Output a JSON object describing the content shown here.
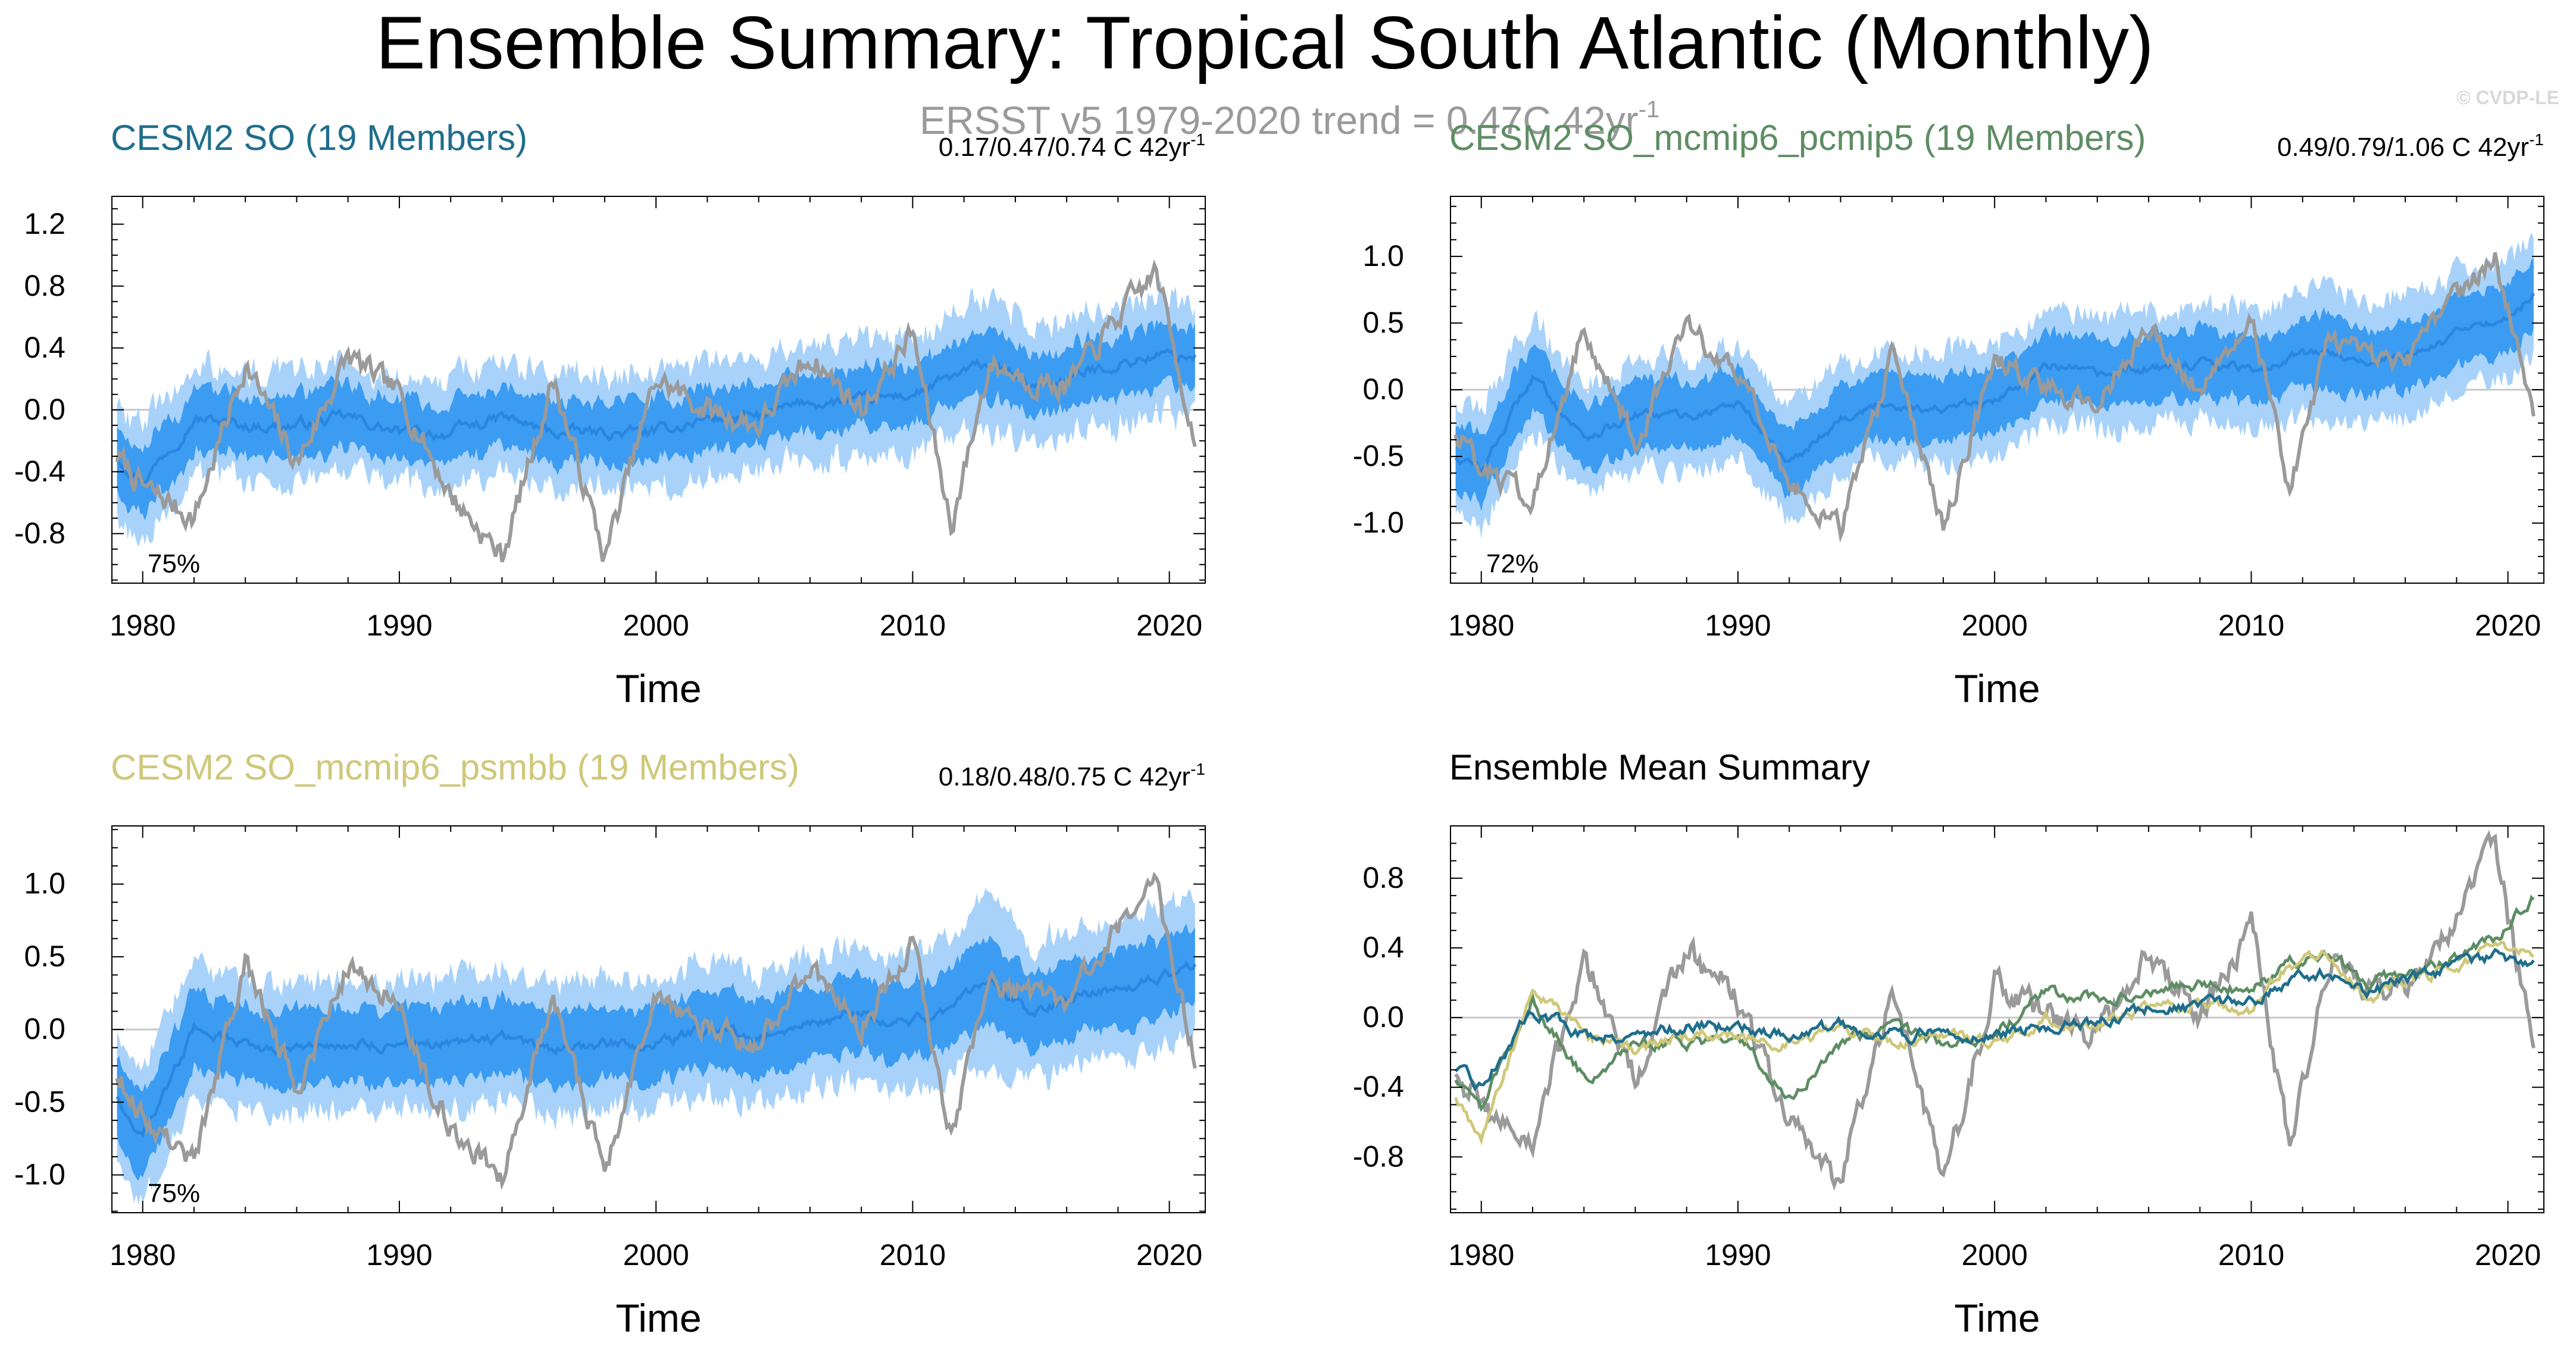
{
  "figure": {
    "title": "Ensemble Summary: Tropical South Atlantic (Monthly)",
    "obs_trend": {
      "text": "ERSST v5 1979-2020 trend = 0.47C 42yr",
      "sup": "-1"
    },
    "watermark": "© CVDP-LE"
  },
  "colors": {
    "obs": "#9a9a9a",
    "band_outer": "#a8d2fa",
    "band_inner": "#3b9cf2",
    "mean_line": "#2a86e0",
    "zero_line": "#c8c8c8",
    "cesm2_so": "#1f6e8c",
    "pcmip5": "#5e8d63",
    "psmbb": "#cfc87a",
    "axis": "#000000"
  },
  "chart_data": [
    {
      "type": "area",
      "id": "cesm2-so",
      "title": "CESM2 SO (19 Members)",
      "title_color": "#1f6e8c",
      "trend": {
        "text": "0.17/0.47/0.74 C 42yr",
        "sup": "-1"
      },
      "percent_label": "75%",
      "xlabel": "Time",
      "ylabel": "",
      "xlim": [
        1978.8,
        2021.4
      ],
      "ylim": [
        -1.12,
        1.38
      ],
      "xticks": [
        1980,
        1990,
        2000,
        2010,
        2020
      ],
      "yticks": [
        -0.8,
        -0.4,
        0.0,
        0.4,
        0.8,
        1.2
      ],
      "yticklabels": [
        "-0.8",
        "-0.4",
        "0.0",
        "0.4",
        "0.8",
        "1.2"
      ],
      "x": [
        1979.0,
        1980.0,
        1982.0,
        1984.0,
        1986.0,
        1988.0,
        1990.0,
        1992.0,
        1994.0,
        1996.0,
        1998.0,
        2000.0,
        2002.0,
        2004.0,
        2006.0,
        2008.0,
        2010.0,
        2011.5,
        2013.0,
        2014.5,
        2016.0,
        2018.0,
        2019.5,
        2021.0
      ],
      "ensemble_mean": [
        -0.3,
        -0.45,
        -0.05,
        -0.1,
        -0.1,
        -0.05,
        -0.15,
        -0.15,
        -0.05,
        -0.15,
        -0.15,
        -0.15,
        -0.05,
        -0.05,
        0.05,
        0.05,
        0.1,
        0.2,
        0.3,
        0.15,
        0.2,
        0.3,
        0.35,
        0.35
      ],
      "inner_band_halfwidth": [
        0.22,
        0.22,
        0.2,
        0.2,
        0.2,
        0.2,
        0.2,
        0.2,
        0.2,
        0.2,
        0.2,
        0.2,
        0.2,
        0.2,
        0.2,
        0.2,
        0.2,
        0.2,
        0.22,
        0.2,
        0.2,
        0.2,
        0.2,
        0.2
      ],
      "outer_band_halfwidth": [
        0.38,
        0.38,
        0.36,
        0.36,
        0.36,
        0.36,
        0.36,
        0.36,
        0.36,
        0.36,
        0.36,
        0.36,
        0.36,
        0.36,
        0.36,
        0.36,
        0.38,
        0.38,
        0.45,
        0.38,
        0.38,
        0.38,
        0.38,
        0.38
      ],
      "observed": [
        -0.3,
        -0.5,
        -0.7,
        0.3,
        -0.35,
        0.35,
        0.1,
        -0.55,
        -0.95,
        0.2,
        -0.95,
        0.2,
        0.0,
        -0.1,
        0.35,
        0.0,
        0.5,
        -0.75,
        0.3,
        0.2,
        0.15,
        0.6,
        0.9,
        -0.2
      ]
    },
    {
      "type": "area",
      "id": "cesm2-so-pcmip5",
      "title": "CESM2 SO_mcmip6_pcmip5 (19 Members)",
      "title_color": "#5e8d63",
      "trend": {
        "text": "0.49/0.79/1.06 C 42yr",
        "sup": "-1"
      },
      "percent_label": "72%",
      "xlabel": "Time",
      "ylabel": "",
      "xlim": [
        1978.8,
        2021.4
      ],
      "ylim": [
        -1.45,
        1.45
      ],
      "xticks": [
        1980,
        1990,
        2000,
        2010,
        2020
      ],
      "yticks": [
        -1.0,
        -0.5,
        0.0,
        0.5,
        1.0
      ],
      "yticklabels": [
        "-1.0",
        "-0.5",
        "0.0",
        "0.5",
        "1.0"
      ],
      "x": [
        1979.0,
        1980.0,
        1982.0,
        1984.0,
        1986.0,
        1988.0,
        1990.0,
        1992.0,
        1994.0,
        1996.0,
        1998.0,
        2000.0,
        2002.0,
        2004.0,
        2006.0,
        2008.0,
        2010.0,
        2011.5,
        2013.0,
        2014.5,
        2016.0,
        2018.0,
        2019.5,
        2021.0
      ],
      "ensemble_mean": [
        -0.5,
        -0.6,
        0.1,
        -0.35,
        -0.2,
        -0.2,
        -0.1,
        -0.55,
        -0.2,
        -0.1,
        -0.15,
        -0.1,
        0.2,
        0.1,
        0.15,
        0.2,
        0.15,
        0.25,
        0.3,
        0.2,
        0.25,
        0.4,
        0.5,
        0.7
      ],
      "inner_band_halfwidth": [
        0.25,
        0.25,
        0.25,
        0.25,
        0.25,
        0.25,
        0.25,
        0.25,
        0.25,
        0.25,
        0.25,
        0.25,
        0.25,
        0.25,
        0.25,
        0.25,
        0.25,
        0.25,
        0.28,
        0.25,
        0.25,
        0.25,
        0.25,
        0.25
      ],
      "outer_band_halfwidth": [
        0.45,
        0.45,
        0.42,
        0.42,
        0.42,
        0.42,
        0.42,
        0.42,
        0.42,
        0.42,
        0.42,
        0.42,
        0.42,
        0.42,
        0.42,
        0.42,
        0.45,
        0.45,
        0.55,
        0.45,
        0.45,
        0.45,
        0.45,
        0.45
      ],
      "observed": [
        -0.3,
        -0.6,
        -0.8,
        0.45,
        -0.4,
        0.45,
        0.15,
        -0.7,
        -1.05,
        0.25,
        -1.05,
        0.25,
        0.0,
        -0.1,
        0.45,
        0.0,
        0.6,
        -0.75,
        0.35,
        0.25,
        0.2,
        0.7,
        1.0,
        -0.2
      ]
    },
    {
      "type": "area",
      "id": "cesm2-so-psmbb",
      "title": "CESM2 SO_mcmip6_psmbb (19 Members)",
      "title_color": "#cfc87a",
      "trend": {
        "text": "0.18/0.48/0.75 C 42yr",
        "sup": "-1"
      },
      "percent_label": "75%",
      "xlabel": "Time",
      "ylabel": "",
      "xlim": [
        1978.8,
        2021.4
      ],
      "ylim": [
        -1.26,
        1.4
      ],
      "xticks": [
        1980,
        1990,
        2000,
        2010,
        2020
      ],
      "yticks": [
        -1.0,
        -0.5,
        0.0,
        0.5,
        1.0
      ],
      "yticklabels": [
        "-1.0",
        "-0.5",
        "0.0",
        "0.5",
        "1.0"
      ],
      "x": [
        1979.0,
        1980.0,
        1982.0,
        1984.0,
        1986.0,
        1988.0,
        1990.0,
        1992.0,
        1994.0,
        1996.0,
        1998.0,
        2000.0,
        2002.0,
        2004.0,
        2006.0,
        2008.0,
        2010.0,
        2011.5,
        2013.0,
        2014.5,
        2016.0,
        2018.0,
        2019.5,
        2021.0
      ],
      "ensemble_mean": [
        -0.45,
        -0.75,
        0.0,
        -0.1,
        -0.15,
        -0.1,
        -0.1,
        -0.1,
        -0.05,
        -0.15,
        -0.1,
        -0.1,
        0.0,
        -0.05,
        0.05,
        0.1,
        0.05,
        0.15,
        0.35,
        0.1,
        0.2,
        0.3,
        0.35,
        0.45
      ],
      "inner_band_halfwidth": [
        0.28,
        0.28,
        0.26,
        0.26,
        0.26,
        0.26,
        0.26,
        0.26,
        0.26,
        0.26,
        0.26,
        0.26,
        0.26,
        0.26,
        0.26,
        0.26,
        0.26,
        0.26,
        0.3,
        0.26,
        0.26,
        0.26,
        0.26,
        0.26
      ],
      "outer_band_halfwidth": [
        0.48,
        0.48,
        0.45,
        0.45,
        0.45,
        0.45,
        0.45,
        0.45,
        0.45,
        0.45,
        0.45,
        0.45,
        0.45,
        0.45,
        0.45,
        0.45,
        0.48,
        0.48,
        0.6,
        0.48,
        0.48,
        0.48,
        0.48,
        0.48
      ],
      "observed": [
        -0.3,
        -0.6,
        -0.9,
        0.45,
        -0.4,
        0.45,
        0.15,
        -0.7,
        -1.0,
        0.25,
        -1.0,
        0.25,
        0.0,
        -0.1,
        0.45,
        0.0,
        0.6,
        -0.75,
        0.35,
        0.25,
        0.2,
        0.7,
        1.0,
        -0.2
      ]
    },
    {
      "type": "line",
      "id": "ensemble-mean-summary",
      "title": "Ensemble Mean Summary",
      "title_color": "#000000",
      "xlabel": "Time",
      "ylabel": "",
      "xlim": [
        1978.8,
        2021.4
      ],
      "ylim": [
        -1.12,
        1.1
      ],
      "xticks": [
        1980,
        1990,
        2000,
        2010,
        2020
      ],
      "yticks": [
        -0.8,
        -0.4,
        0.0,
        0.4,
        0.8
      ],
      "yticklabels": [
        "-0.8",
        "-0.4",
        "0.0",
        "0.4",
        "0.8"
      ],
      "x": [
        1979.0,
        1980.0,
        1982.0,
        1984.0,
        1986.0,
        1988.0,
        1990.0,
        1992.0,
        1994.0,
        1996.0,
        1998.0,
        2000.0,
        2002.0,
        2004.0,
        2006.0,
        2008.0,
        2010.0,
        2011.5,
        2013.0,
        2014.5,
        2016.0,
        2018.0,
        2019.5,
        2021.0
      ],
      "series": [
        {
          "name": "ERSST v5",
          "color": "#9a9a9a",
          "values": [
            -0.3,
            -0.5,
            -0.75,
            0.35,
            -0.35,
            0.4,
            0.1,
            -0.6,
            -0.95,
            0.2,
            -0.95,
            0.2,
            0.0,
            -0.1,
            0.4,
            0.0,
            0.55,
            -0.75,
            0.3,
            0.2,
            0.15,
            0.6,
            1.0,
            -0.2
          ]
        },
        {
          "name": "CESM2 SO_mcmip6_pcmip5",
          "color": "#5e8d63",
          "values": [
            -0.35,
            -0.5,
            0.1,
            -0.35,
            -0.15,
            -0.15,
            -0.1,
            -0.45,
            -0.15,
            -0.05,
            -0.15,
            -0.1,
            0.15,
            0.1,
            0.15,
            0.2,
            0.15,
            0.3,
            0.35,
            0.2,
            0.25,
            0.35,
            0.45,
            0.7
          ]
        },
        {
          "name": "CESM2 SO_mcmip6_psmbb",
          "color": "#cfc87a",
          "values": [
            -0.45,
            -0.7,
            0.15,
            -0.1,
            -0.2,
            -0.1,
            -0.1,
            -0.15,
            -0.05,
            -0.15,
            -0.1,
            -0.15,
            0.0,
            -0.05,
            0.05,
            0.1,
            0.05,
            0.3,
            0.35,
            0.1,
            0.2,
            0.3,
            0.4,
            0.35
          ]
        },
        {
          "name": "CESM2 SO",
          "color": "#1f6e8c",
          "values": [
            -0.3,
            -0.4,
            0.05,
            -0.1,
            -0.1,
            -0.05,
            -0.05,
            -0.1,
            -0.05,
            -0.1,
            -0.1,
            -0.1,
            -0.05,
            -0.05,
            0.05,
            0.05,
            0.1,
            0.2,
            0.25,
            0.15,
            0.2,
            0.3,
            0.35,
            0.3
          ]
        }
      ]
    }
  ]
}
